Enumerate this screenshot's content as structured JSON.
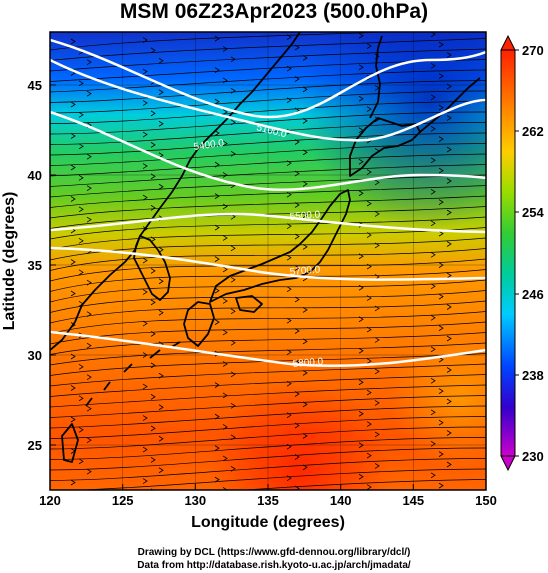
{
  "title": "MSM 06Z23Apr2023 (500.0hPa)",
  "x_axis": {
    "label": "Longitude (degrees)",
    "range": [
      120,
      150
    ],
    "ticks": [
      "120",
      "125",
      "130",
      "135",
      "140",
      "145",
      "150"
    ]
  },
  "y_axis": {
    "label": "Latitude  (degrees)",
    "range": [
      22.5,
      48
    ],
    "ticks": [
      "25",
      "30",
      "35",
      "40",
      "45"
    ]
  },
  "colorbar": {
    "min": 230,
    "max": 270,
    "tick_labels": [
      "270",
      "262",
      "254",
      "246",
      "238",
      "230"
    ],
    "colors": [
      "#cc00cc",
      "#3300cc",
      "#0044ff",
      "#00ccff",
      "#00cc99",
      "#33cc33",
      "#99dd00",
      "#ffcc00",
      "#ff8800",
      "#ff4400",
      "#ff2200"
    ]
  },
  "contours": {
    "labels": [
      "5100.0",
      "5400.0",
      "5500.0",
      "5700.0",
      "5800.0"
    ]
  },
  "credits": {
    "line1": "Drawing by DCL (https://www.gfd-dennou.org/library/dcl/)",
    "line2": "Data from http://database.rish.kyoto-u.ac.jp/arch/jmadata/"
  }
}
